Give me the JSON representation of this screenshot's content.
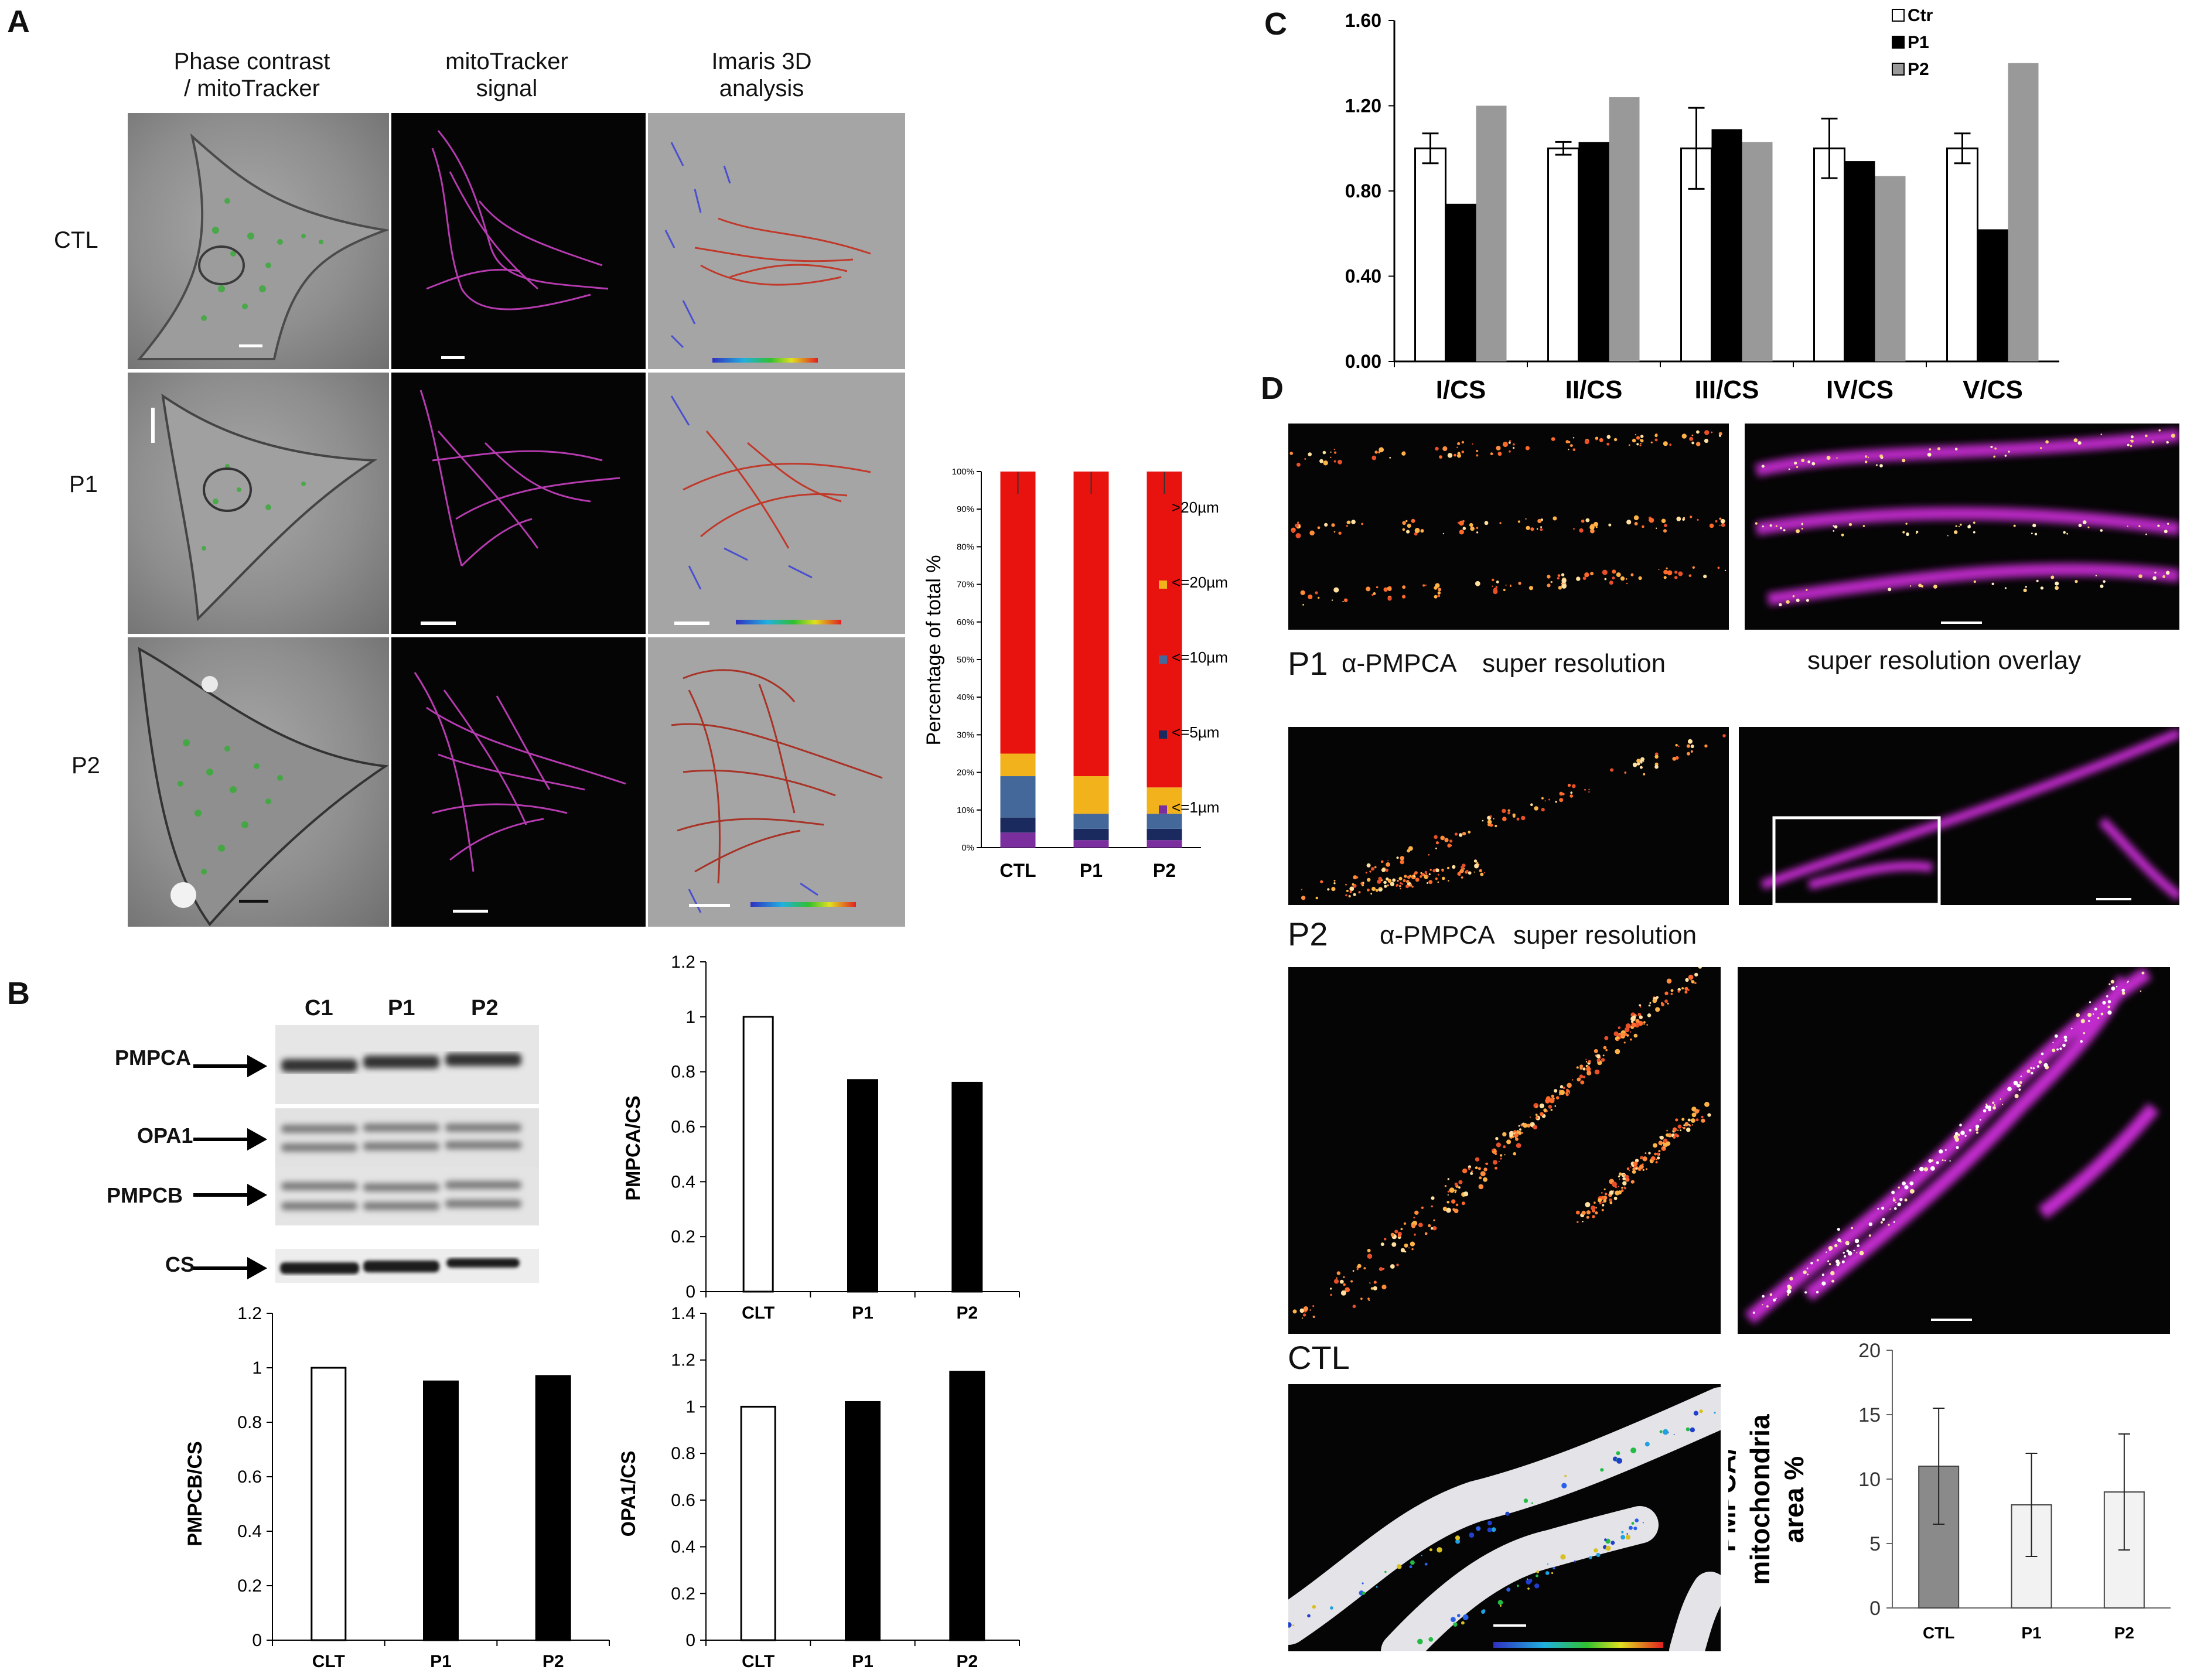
{
  "panels": {
    "A": "A",
    "B": "B",
    "C": "C",
    "D": "D"
  },
  "panelA": {
    "col_headers": [
      "Phase contrast\n/ mitoTracker",
      "mitoTracker\nsignal",
      "Imaris 3D\nanalysis"
    ],
    "row_labels": [
      "CTL",
      "P1",
      "P2"
    ],
    "colors": {
      "mito": "#b63bb0",
      "long": "#c0392b",
      "short": "#4a4fcf"
    }
  },
  "chart_data": [
    {
      "id": "A-stacked",
      "type": "bar",
      "stacked": true,
      "categories": [
        "CTL",
        "P1",
        "P2"
      ],
      "ylabel": "Percentage of total %",
      "ylim": [
        0,
        100
      ],
      "yticks": [
        "0%",
        "10%",
        "20%",
        "30%",
        "40%",
        "50%",
        "60%",
        "70%",
        "80%",
        "90%",
        "100%"
      ],
      "legend_position": "right",
      "series": [
        {
          "name": "<=1µm",
          "color": "#7b2f9e",
          "values": [
            4,
            2,
            2
          ]
        },
        {
          "name": "<=5µm",
          "color": "#1b2a5e",
          "values": [
            4,
            3,
            3
          ]
        },
        {
          "name": "<=10µm",
          "color": "#44689a",
          "values": [
            11,
            4,
            4
          ]
        },
        {
          "name": "<=20µm",
          "color": "#f2b21b",
          "values": [
            6,
            10,
            7
          ]
        },
        {
          "name": ">20µm",
          "color": "#e8130f",
          "values": [
            75,
            81,
            84
          ]
        }
      ]
    },
    {
      "id": "B-PMPCA",
      "type": "bar",
      "categories": [
        "CLT",
        "P1",
        "P2"
      ],
      "values": [
        1.0,
        0.77,
        0.76
      ],
      "ylabel": "PMPCA/CS",
      "ylim": [
        0,
        1.2
      ],
      "yticks": [
        "0",
        "0.2",
        "0.4",
        "0.6",
        "0.8",
        "1",
        "1.2"
      ]
    },
    {
      "id": "B-PMPCB",
      "type": "bar",
      "categories": [
        "CLT",
        "P1",
        "P2"
      ],
      "values": [
        1.0,
        0.95,
        0.97
      ],
      "ylabel": "PMPCB/CS",
      "ylim": [
        0,
        1.2
      ],
      "yticks": [
        "0",
        "0.2",
        "0.4",
        "0.6",
        "0.8",
        "1",
        "1.2"
      ]
    },
    {
      "id": "B-OPA1",
      "type": "bar",
      "categories": [
        "CLT",
        "P1",
        "P2"
      ],
      "values": [
        1.0,
        1.02,
        1.15
      ],
      "ylabel": "OPA1/CS",
      "ylim": [
        0,
        1.4
      ],
      "yticks": [
        "0",
        "0.2",
        "0.4",
        "0.6",
        "0.8",
        "1",
        "1.2",
        "1.4"
      ]
    },
    {
      "id": "C-complexes",
      "type": "bar",
      "categories": [
        "I/CS",
        "II/CS",
        "III/CS",
        "IV/CS",
        "V/CS"
      ],
      "ylim": [
        0,
        1.6
      ],
      "yticks": [
        "0.00",
        "0.40",
        "0.80",
        "1.20",
        "1.60"
      ],
      "legend_position": "top-right",
      "series": [
        {
          "name": "Ctr",
          "color": "#ffffff",
          "values": [
            1.0,
            1.0,
            1.0,
            1.0,
            1.0
          ],
          "err": [
            0.07,
            0.03,
            0.19,
            0.14,
            0.07
          ]
        },
        {
          "name": "P1",
          "color": "#000000",
          "values": [
            0.74,
            1.03,
            1.09,
            0.94,
            0.62
          ]
        },
        {
          "name": "P2",
          "color": "#999999",
          "values": [
            1.2,
            1.24,
            1.03,
            0.87,
            1.4
          ]
        }
      ]
    },
    {
      "id": "D-area",
      "type": "bar",
      "categories": [
        "CTL",
        "P1",
        "P2"
      ],
      "values": [
        11,
        8,
        9
      ],
      "err": [
        4.5,
        4.0,
        4.5
      ],
      "colors": [
        "#8a8a8a",
        "#f2f2f2",
        "#f2f2f2"
      ],
      "ylabel": "PMPCA/\nmitochondria\narea %",
      "ylim": [
        0,
        20
      ],
      "yticks": [
        "0",
        "5",
        "10",
        "15",
        "20"
      ]
    }
  ],
  "panelB": {
    "lanes": [
      "C1",
      "P1",
      "P2"
    ],
    "bands": [
      "PMPCA",
      "OPA1",
      "PMPCB",
      "CS"
    ]
  },
  "panelD": {
    "p1_caption": {
      "id": "P1",
      "antibody": "α-PMPCA",
      "method": "super resolution",
      "overlay": "super resolution overlay"
    },
    "p2_caption": {
      "id": "P2",
      "antibody": "α-PMPCA",
      "method": "super resolution"
    },
    "ctl_caption": "CTL"
  }
}
